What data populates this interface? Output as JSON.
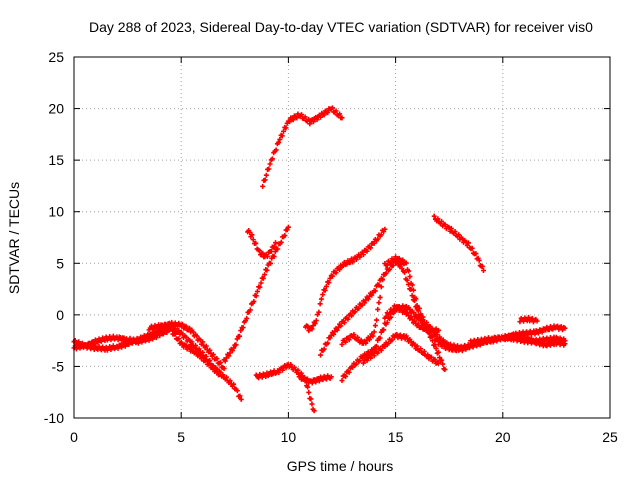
{
  "chart_data": {
    "type": "scatter",
    "title": "Day 288 of 2023, Sidereal Day-to-day VTEC variation (SDTVAR) for receiver vis0",
    "xlabel": "GPS time / hours",
    "ylabel": "SDTVAR / TECUs",
    "xlim": [
      0,
      25
    ],
    "ylim": [
      -10,
      25
    ],
    "xticks": [
      0,
      5,
      10,
      15,
      20,
      25
    ],
    "yticks": [
      -10,
      -5,
      0,
      5,
      10,
      15,
      20,
      25
    ],
    "grid": true,
    "marker": "plus",
    "color": "#ff0000",
    "series": [
      {
        "name": "s1",
        "x": [
          0,
          0.5,
          1,
          1.5,
          2,
          2.5,
          3,
          3.5,
          4,
          4.5,
          5,
          5.5,
          6,
          6.5,
          7,
          7.5,
          7.8
        ],
        "y": [
          -2.6,
          -3.0,
          -3.2,
          -3.3,
          -3.1,
          -2.8,
          -2.4,
          -2.0,
          -1.6,
          -1.3,
          -1.8,
          -2.8,
          -3.8,
          -5.0,
          -6.0,
          -7.0,
          -8.2
        ]
      },
      {
        "name": "s2",
        "x": [
          0,
          0.5,
          1,
          1.5,
          2,
          2.5,
          3,
          3.5,
          4,
          4.5,
          5,
          5.5,
          6,
          6.5,
          6.8
        ],
        "y": [
          -3.2,
          -3.0,
          -2.6,
          -2.3,
          -2.2,
          -2.4,
          -2.6,
          -2.3,
          -1.9,
          -1.4,
          -2.8,
          -3.4,
          -4.2,
          -5.2,
          -5.8
        ]
      },
      {
        "name": "s3",
        "x": [
          3.5,
          4,
          4.5,
          5,
          5.5,
          6,
          6.5,
          7
        ],
        "y": [
          -1.3,
          -1.1,
          -0.9,
          -1.0,
          -1.6,
          -2.8,
          -4.0,
          -5.2
        ]
      },
      {
        "name": "s4",
        "x": [
          7.0,
          7.5,
          8.0,
          8.5,
          9.0,
          9.5,
          10.0
        ],
        "y": [
          -4.5,
          -3.0,
          -0.5,
          2.0,
          4.5,
          6.5,
          8.5
        ]
      },
      {
        "name": "s5",
        "x": [
          8.1,
          8.3,
          8.6,
          8.9,
          9.2,
          9.4
        ],
        "y": [
          8.2,
          7.6,
          6.2,
          5.6,
          6.2,
          7.0
        ]
      },
      {
        "name": "s6",
        "x": [
          8.8,
          9.2,
          9.6,
          10.0,
          10.5,
          11.0,
          11.5,
          12.0,
          12.5
        ],
        "y": [
          12.5,
          15.0,
          17.0,
          18.8,
          19.4,
          18.7,
          19.3,
          20.0,
          19.1
        ]
      },
      {
        "name": "s7",
        "x": [
          8.5,
          9.0,
          9.5,
          10.0,
          10.5,
          10.8,
          11.0,
          11.2
        ],
        "y": [
          -6.0,
          -5.8,
          -5.5,
          -4.8,
          -5.6,
          -6.3,
          -8.0,
          -9.3
        ]
      },
      {
        "name": "s8",
        "x": [
          10.5,
          11.0,
          11.5,
          12.0
        ],
        "y": [
          -6.0,
          -6.5,
          -6.2,
          -6.0
        ]
      },
      {
        "name": "s9",
        "x": [
          10.8,
          11.0,
          11.3,
          11.6,
          12.0,
          12.5,
          13.0,
          13.5,
          14.0,
          14.5
        ],
        "y": [
          -1.0,
          -1.5,
          -0.6,
          2.0,
          3.8,
          4.8,
          5.3,
          6.0,
          7.0,
          8.3
        ]
      },
      {
        "name": "s10",
        "x": [
          11.5,
          12,
          12.5,
          13,
          13.5,
          14,
          14.5,
          15,
          15.3,
          15.6,
          16.0,
          16.5,
          17.0,
          17.3
        ],
        "y": [
          -3.8,
          -2.0,
          -0.8,
          0.2,
          1.2,
          2.3,
          4.0,
          5.2,
          4.6,
          3.0,
          0.5,
          -1.5,
          -3.8,
          -5.3
        ]
      },
      {
        "name": "s11",
        "x": [
          12.5,
          13.0,
          13.5,
          14.0,
          14.5,
          15.0,
          15.5,
          16.0,
          16.5,
          17.0,
          17.5,
          18.0,
          18.5,
          19.0
        ],
        "y": [
          -6.2,
          -5.0,
          -4.0,
          -3.4,
          -1.0,
          0.6,
          0.8,
          -0.2,
          -1.0,
          -2.2,
          -3.0,
          -3.2,
          -3.0,
          -2.7
        ]
      },
      {
        "name": "s12",
        "x": [
          13.5,
          14.0,
          14.5,
          15.0,
          15.5,
          16.0,
          16.5,
          17.0
        ],
        "y": [
          -4.5,
          -3.8,
          -3.0,
          -2.0,
          -2.2,
          -3.2,
          -4.0,
          -4.7
        ]
      },
      {
        "name": "s13",
        "x": [
          12.5,
          13.0,
          13.5,
          14.0,
          14.5,
          15.0,
          15.5,
          16.0,
          16.5,
          17.0,
          17.5,
          18.0,
          18.5,
          19.0,
          19.5,
          20.0,
          20.5,
          21.0,
          21.5,
          22.0,
          22.5,
          22.9
        ],
        "y": [
          -2.7,
          -2.0,
          -2.8,
          -1.8,
          4.8,
          5.5,
          5.0,
          1.0,
          -1.5,
          -2.7,
          -3.3,
          -3.4,
          -3.0,
          -2.7,
          -2.5,
          -2.2,
          -2.0,
          -1.8,
          -1.7,
          -1.4,
          -1.2,
          -1.3
        ]
      },
      {
        "name": "s14",
        "x": [
          14.5,
          15.0,
          15.5,
          16.0,
          16.5,
          17.0
        ],
        "y": [
          -0.2,
          0.8,
          0.2,
          -1.0,
          -1.5,
          -1.5
        ]
      },
      {
        "name": "s15",
        "x": [
          16.8,
          17.2,
          17.6,
          18.0,
          18.4,
          18.8,
          19.1
        ],
        "y": [
          9.4,
          8.8,
          8.2,
          7.5,
          6.8,
          5.6,
          4.3
        ]
      },
      {
        "name": "s16",
        "x": [
          18.5,
          19.0,
          19.5,
          20.0,
          20.5,
          21.0,
          21.5,
          22.0,
          22.5,
          22.9
        ],
        "y": [
          -2.7,
          -2.5,
          -2.3,
          -2.2,
          -2.3,
          -2.5,
          -2.6,
          -2.4,
          -2.3,
          -2.5
        ]
      },
      {
        "name": "s17",
        "x": [
          20.0,
          20.5,
          21.0,
          21.5,
          22.0,
          22.5,
          22.9
        ],
        "y": [
          -2.3,
          -2.0,
          -2.2,
          -2.6,
          -2.9,
          -2.7,
          -2.8
        ]
      },
      {
        "name": "s18",
        "x": [
          20.8,
          21.2,
          21.6
        ],
        "y": [
          -0.5,
          -0.4,
          -0.6
        ]
      }
    ]
  }
}
